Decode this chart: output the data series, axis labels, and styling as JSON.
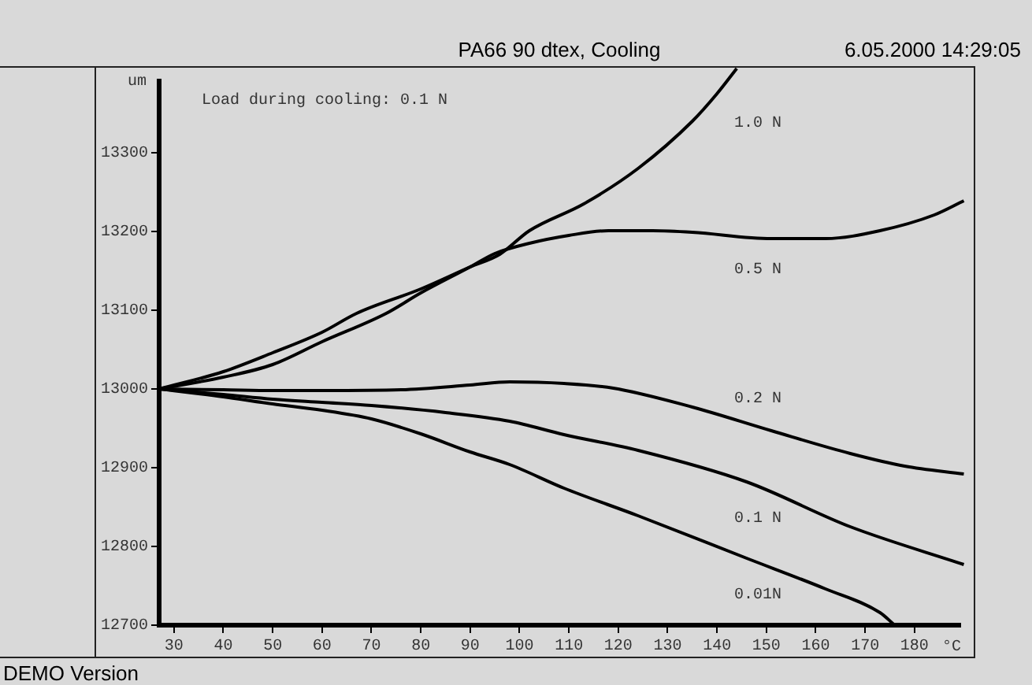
{
  "chart_data": {
    "type": "line",
    "title": "PA66 90 dtex, Cooling",
    "subtitle": "6.05.2000 14:29:05",
    "xlabel": "°C",
    "ylabel": "um",
    "annotations": [
      "Load during cooling: 0.1 N",
      "DEMO Version"
    ],
    "series": [
      {
        "name": "1.0 N",
        "color": "#000000",
        "x": [
          27,
          40,
          50,
          60,
          67,
          80,
          90,
          96,
          102,
          113,
          124,
          135,
          140,
          144
        ],
        "values": [
          13000,
          13022,
          13046,
          13072,
          13096,
          13127,
          13155,
          13171,
          13201,
          13235,
          13280,
          13340,
          13375,
          13407
        ]
      },
      {
        "name": "0.5 N",
        "color": "#000000",
        "x": [
          27,
          40,
          50,
          60,
          73,
          80,
          90,
          95,
          102,
          110,
          118,
          127,
          135,
          151,
          162,
          173,
          184,
          190
        ],
        "values": [
          13000,
          13015,
          13031,
          13060,
          13096,
          13122,
          13155,
          13172,
          13185,
          13195,
          13201,
          13201,
          13199,
          13191,
          13191,
          13201,
          13221,
          13239
        ]
      },
      {
        "name": "0.2 N",
        "color": "#000000",
        "x": [
          27,
          40,
          50,
          60,
          76,
          90,
          98,
          109,
          119,
          135,
          151,
          167,
          178,
          190
        ],
        "values": [
          13000,
          12999,
          12998,
          12998,
          12999,
          13005,
          13009,
          13007,
          13001,
          12977,
          12947,
          12918,
          12902,
          12892
        ]
      },
      {
        "name": "0.1 N",
        "color": "#000000",
        "x": [
          27,
          40,
          50,
          60,
          70,
          85,
          98,
          109,
          124,
          146,
          167,
          190
        ],
        "values": [
          13000,
          12993,
          12987,
          12983,
          12979,
          12970,
          12959,
          12942,
          12922,
          12882,
          12825,
          12777
        ]
      },
      {
        "name": "0.01N",
        "color": "#000000",
        "x": [
          27,
          40,
          50,
          60,
          70,
          80,
          90,
          98,
          109,
          124,
          146,
          162,
          173,
          176
        ],
        "values": [
          13000,
          12990,
          12981,
          12973,
          12962,
          12943,
          12920,
          12904,
          12874,
          12839,
          12785,
          12746,
          12716,
          12700
        ]
      }
    ],
    "xlim": [
      27,
      192
    ],
    "xticks": [
      30,
      40,
      50,
      60,
      70,
      80,
      90,
      100,
      110,
      120,
      130,
      140,
      150,
      160,
      170,
      180
    ],
    "ylim": [
      12700,
      13410
    ],
    "yticks": [
      12700,
      12800,
      12900,
      13000,
      13100,
      13200,
      13300
    ],
    "grid": false,
    "legend": false,
    "line_style": "solid",
    "marker": "none"
  }
}
